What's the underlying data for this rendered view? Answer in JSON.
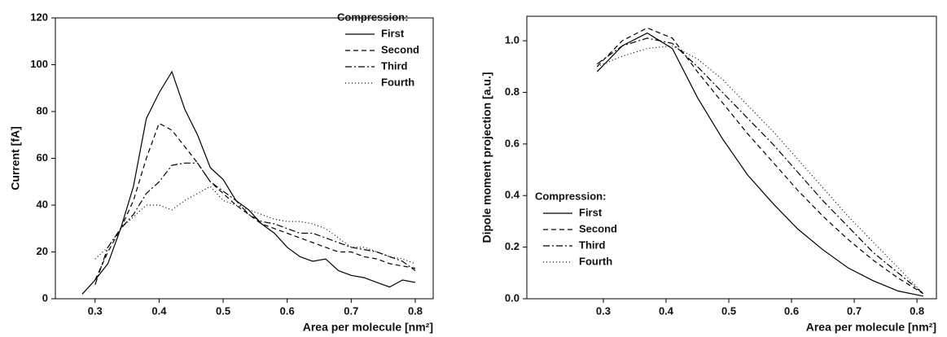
{
  "chart_data": [
    {
      "type": "line",
      "xlabel": "Area per molecule [nm²]",
      "ylabel": "Current [fA]",
      "xlim": [
        0.238,
        0.828
      ],
      "ylim": [
        0,
        120
      ],
      "xticks": [
        0.3,
        0.4,
        0.5,
        0.6,
        0.7,
        0.8
      ],
      "yticks": [
        0,
        20,
        40,
        60,
        80,
        100,
        120
      ],
      "legend": "upper right",
      "legend_title": "Compression:",
      "x": [
        0.28,
        0.3,
        0.32,
        0.34,
        0.36,
        0.38,
        0.4,
        0.42,
        0.44,
        0.46,
        0.48,
        0.5,
        0.52,
        0.54,
        0.56,
        0.58,
        0.6,
        0.62,
        0.64,
        0.66,
        0.68,
        0.7,
        0.72,
        0.74,
        0.76,
        0.78,
        0.8
      ],
      "series": [
        {
          "name": "First",
          "color": "#000000",
          "linestyle": "solid",
          "values": [
            2,
            8,
            15,
            30,
            48,
            77,
            88,
            97,
            81,
            70,
            56,
            51,
            42,
            38,
            32,
            28,
            22,
            18,
            16,
            17,
            12,
            10,
            9,
            7,
            5,
            8,
            7
          ]
        },
        {
          "name": "Second",
          "color": "#000000",
          "linestyle": "dashed",
          "values": [
            null,
            8,
            20,
            30,
            42,
            60,
            75,
            72,
            65,
            58,
            50,
            45,
            40,
            36,
            32,
            30,
            28,
            26,
            24,
            22,
            20,
            20,
            18,
            17,
            15,
            14,
            13
          ]
        },
        {
          "name": "Third",
          "color": "#000000",
          "linestyle": "dashdot",
          "values": [
            null,
            6,
            22,
            30,
            36,
            45,
            50,
            57,
            58,
            58,
            50,
            46,
            42,
            36,
            33,
            32,
            30,
            28,
            28,
            26,
            24,
            22,
            21,
            20,
            18,
            16,
            12
          ]
        },
        {
          "name": "Fourth",
          "color": "#000000",
          "linestyle": "dotted",
          "values": [
            null,
            17,
            22,
            30,
            35,
            40,
            40,
            38,
            42,
            45,
            48,
            42,
            40,
            38,
            36,
            34,
            33,
            33,
            32,
            30,
            26,
            22,
            22,
            20,
            18,
            17,
            15
          ]
        }
      ]
    },
    {
      "type": "line",
      "xlabel": "Area per molecule [nm²]",
      "ylabel": "Dipole moment projection [a.u.]",
      "xlim": [
        0.178,
        0.831
      ],
      "ylim": [
        0,
        1.095
      ],
      "xticks": [
        0.3,
        0.4,
        0.5,
        0.6,
        0.7,
        0.8
      ],
      "yticks": [
        {
          "value": 0,
          "label": "0.0"
        },
        0.2,
        0.4,
        0.6,
        0.8,
        {
          "value": 1,
          "label": "1.0"
        }
      ],
      "legend": "lower left",
      "legend_title": "Compression:",
      "x": [
        0.29,
        0.33,
        0.37,
        0.41,
        0.45,
        0.49,
        0.53,
        0.57,
        0.61,
        0.65,
        0.69,
        0.73,
        0.77,
        0.81
      ],
      "series": [
        {
          "name": "First",
          "color": "#000000",
          "linestyle": "solid",
          "values": [
            0.88,
            0.98,
            1.03,
            0.97,
            0.78,
            0.62,
            0.48,
            0.37,
            0.27,
            0.19,
            0.12,
            0.07,
            0.03,
            0.01
          ]
        },
        {
          "name": "Second",
          "color": "#000000",
          "linestyle": "dashed",
          "values": [
            0.9,
            1.0,
            1.05,
            1.01,
            0.88,
            0.76,
            0.64,
            0.53,
            0.42,
            0.32,
            0.23,
            0.15,
            0.08,
            0.02
          ]
        },
        {
          "name": "Third",
          "color": "#000000",
          "linestyle": "dashdot",
          "values": [
            0.91,
            0.98,
            1.01,
            0.99,
            0.9,
            0.8,
            0.7,
            0.6,
            0.49,
            0.38,
            0.28,
            0.18,
            0.1,
            0.02
          ]
        },
        {
          "name": "Fourth",
          "color": "#000000",
          "linestyle": "dotted",
          "values": [
            0.9,
            0.94,
            0.97,
            0.98,
            0.93,
            0.85,
            0.75,
            0.65,
            0.54,
            0.43,
            0.32,
            0.22,
            0.12,
            0.02
          ]
        }
      ]
    }
  ]
}
